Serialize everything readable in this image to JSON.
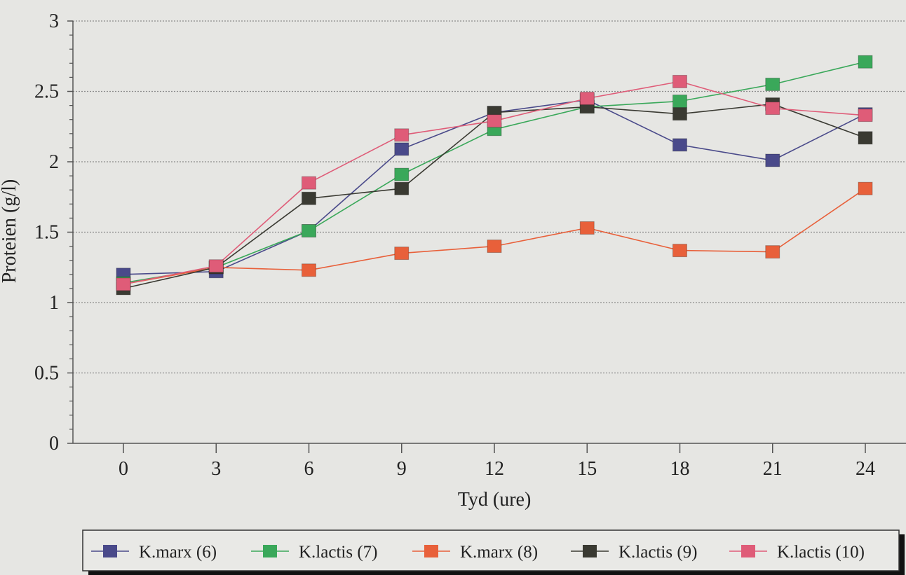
{
  "chart_data": {
    "type": "line",
    "title": "",
    "xlabel": "Tyd (ure)",
    "ylabel": "Proteien (g/l)",
    "x": [
      0,
      3,
      6,
      9,
      12,
      15,
      18,
      21,
      24
    ],
    "xlim": [
      0,
      24
    ],
    "ylim": [
      0,
      3
    ],
    "xticks": [
      "0",
      "3",
      "6",
      "9",
      "12",
      "15",
      "18",
      "21",
      "24"
    ],
    "yticks": [
      "0",
      "0.5",
      "1",
      "1.5",
      "2",
      "2.5",
      "3"
    ],
    "ytick_values": [
      0,
      0.5,
      1,
      1.5,
      2,
      2.5,
      3
    ],
    "grid": true,
    "legend_position": "bottom",
    "series": [
      {
        "name": "K.marx (6)",
        "color": "#4a4a8a",
        "values": [
          1.2,
          1.22,
          1.51,
          2.09,
          2.35,
          2.44,
          2.12,
          2.01,
          2.34
        ]
      },
      {
        "name": "K.lactis (7)",
        "color": "#3aa85a",
        "values": [
          1.14,
          1.25,
          1.51,
          1.91,
          2.23,
          2.39,
          2.43,
          2.55,
          2.71
        ]
      },
      {
        "name": "K.marx (8)",
        "color": "#e8603a",
        "values": [
          1.13,
          1.25,
          1.23,
          1.35,
          1.4,
          1.53,
          1.37,
          1.36,
          1.81
        ]
      },
      {
        "name": "K.lactis (9)",
        "color": "#3a3a32",
        "values": [
          1.1,
          1.25,
          1.74,
          1.81,
          2.35,
          2.39,
          2.34,
          2.41,
          2.17
        ]
      },
      {
        "name": "K.lactis (10)",
        "color": "#df5c78",
        "values": [
          1.13,
          1.26,
          1.85,
          2.19,
          2.29,
          2.45,
          2.57,
          2.38,
          2.33
        ]
      }
    ]
  }
}
